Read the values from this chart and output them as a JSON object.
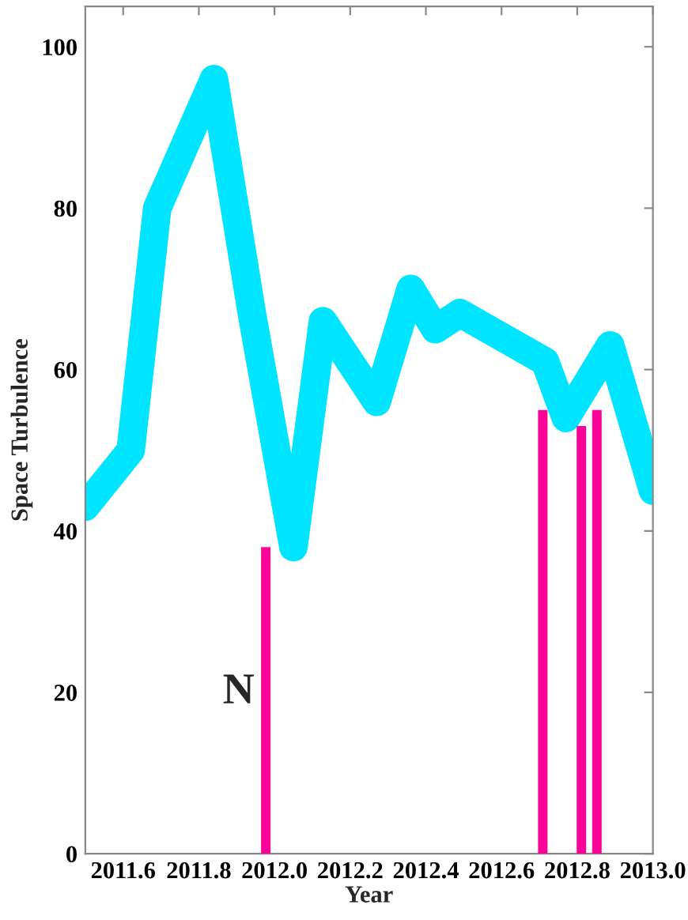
{
  "chart_data": {
    "type": "line",
    "xlabel": "Year",
    "ylabel": "Space Turbulence",
    "xlim": [
      2011.5,
      2013.0
    ],
    "ylim": [
      0,
      105
    ],
    "xticks": [
      {
        "value": 2011.6,
        "label": "2011.6"
      },
      {
        "value": 2011.8,
        "label": "2011.8"
      },
      {
        "value": 2012.0,
        "label": "2012.0"
      },
      {
        "value": 2012.2,
        "label": "2012.2"
      },
      {
        "value": 2012.4,
        "label": "2012.4"
      },
      {
        "value": 2012.6,
        "label": "2012.6"
      },
      {
        "value": 2012.8,
        "label": "2012.8"
      },
      {
        "value": 2013.0,
        "label": "2013.0"
      }
    ],
    "yticks": [
      0,
      20,
      40,
      60,
      80,
      100
    ],
    "grid": false,
    "legend": false,
    "series": [
      {
        "color": "#00e5ff",
        "x": [
          2011.5,
          2011.62,
          2011.69,
          2011.84,
          2011.94,
          2012.05,
          2012.128,
          2012.27,
          2012.36,
          2012.425,
          2012.49,
          2012.715,
          2012.77,
          2012.887,
          2013.0
        ],
        "values": [
          43,
          50,
          80,
          96,
          67,
          38,
          66,
          56,
          70,
          65,
          67,
          61,
          54,
          63,
          45
        ]
      },
      {
        "type": "bar",
        "color": "#ff0099",
        "x": [
          2011.977,
          2012.709,
          2012.811,
          2012.852
        ],
        "values": [
          38,
          55,
          53,
          55
        ]
      }
    ],
    "annotations": [
      "N"
    ]
  }
}
